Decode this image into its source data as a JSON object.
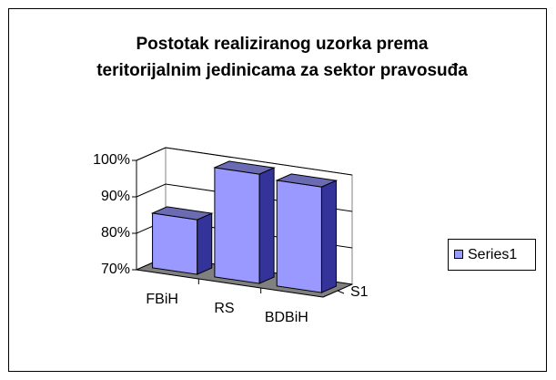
{
  "chart_data": {
    "type": "bar3d",
    "title": "Postotak realiziranog uzorka prema teritorijalnim jedinicama za sektor pravosuđa",
    "categories": [
      "FBiH",
      "RS",
      "BDBiH"
    ],
    "series": [
      {
        "name": "Series1",
        "color": "#9999ff",
        "values": [
          85,
          100,
          99
        ]
      }
    ],
    "depth_label": "S1",
    "ylim": [
      70,
      100
    ],
    "yticks": [
      {
        "value": 70,
        "label": "70%"
      },
      {
        "value": 80,
        "label": "80%"
      },
      {
        "value": 90,
        "label": "90%"
      },
      {
        "value": 100,
        "label": "100%"
      }
    ],
    "grid": true,
    "legend": "right"
  }
}
